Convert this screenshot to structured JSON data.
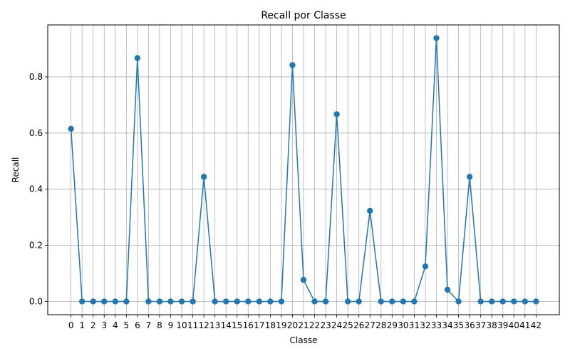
{
  "chart_data": {
    "type": "line",
    "title": "Recall por Classe",
    "xlabel": "Classe",
    "ylabel": "Recall",
    "x": [
      0,
      1,
      2,
      3,
      4,
      5,
      6,
      7,
      8,
      9,
      10,
      11,
      12,
      13,
      14,
      15,
      16,
      17,
      18,
      19,
      20,
      21,
      22,
      23,
      24,
      25,
      26,
      27,
      28,
      29,
      30,
      31,
      32,
      33,
      34,
      35,
      36,
      37,
      38,
      39,
      40,
      41,
      42
    ],
    "series": [
      {
        "values": [
          0.615,
          0,
          0,
          0,
          0,
          0,
          0.867,
          0,
          0,
          0,
          0,
          0,
          0.444,
          0,
          0,
          0,
          0,
          0,
          0,
          0,
          0.842,
          0.077,
          0,
          0,
          0.667,
          0,
          0,
          0.323,
          0,
          0,
          0,
          0,
          0.125,
          0.938,
          0.042,
          0,
          0.444,
          0,
          0,
          0,
          0,
          0,
          0
        ],
        "color": "#1f77b4",
        "marker": "circle"
      }
    ],
    "xlim": [
      -2.1,
      44.1
    ],
    "ylim": [
      -0.047,
      0.985
    ],
    "yticks": [
      0.0,
      0.2,
      0.4,
      0.6,
      0.8
    ],
    "ytick_labels": [
      "0.0",
      "0.2",
      "0.4",
      "0.6",
      "0.8"
    ],
    "grid": true,
    "legend": "none"
  }
}
